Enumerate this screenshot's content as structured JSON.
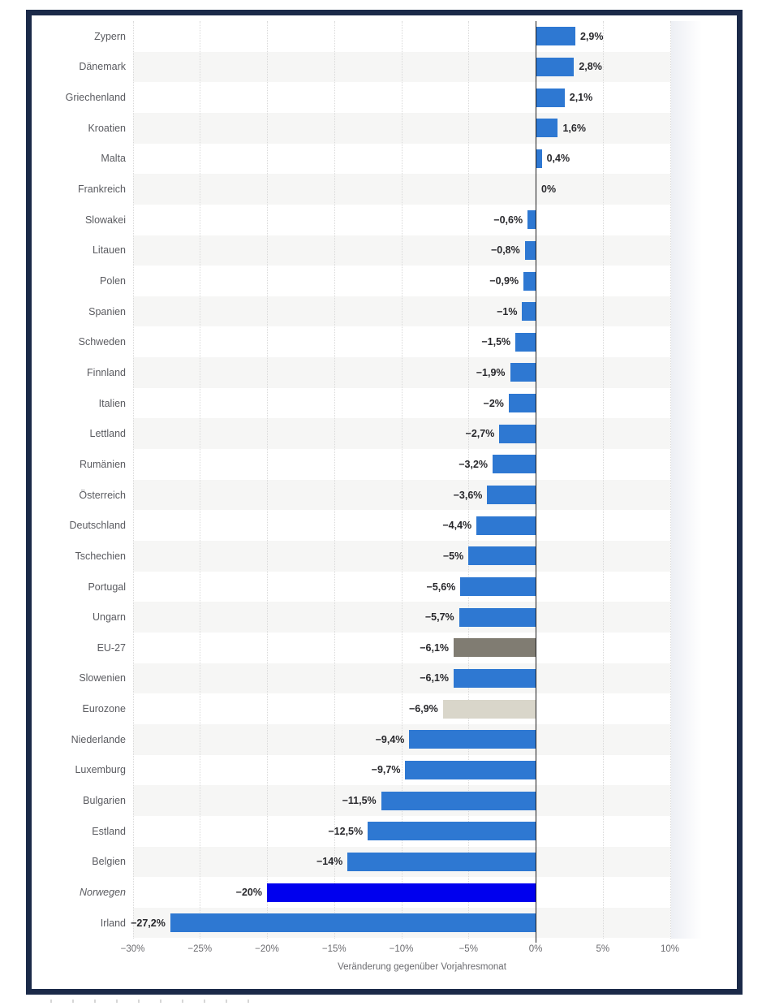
{
  "chart_data": {
    "type": "bar",
    "orientation": "horizontal",
    "title": "",
    "xlabel": "Veränderung gegenüber Vorjahresmonat",
    "xlim": [
      -30,
      10
    ],
    "grid": "dotted-vertical",
    "legend": "none",
    "x_ticks": [
      {
        "value": -30,
        "label": "−30%"
      },
      {
        "value": -25,
        "label": "−25%"
      },
      {
        "value": -20,
        "label": "−20%"
      },
      {
        "value": -15,
        "label": "−15%"
      },
      {
        "value": -10,
        "label": "−10%"
      },
      {
        "value": -5,
        "label": "−5%"
      },
      {
        "value": 0,
        "label": "0%"
      },
      {
        "value": 5,
        "label": "5%"
      },
      {
        "value": 10,
        "label": "10%"
      }
    ],
    "colors": {
      "default": "#2e78d2",
      "eu27": "#807c72",
      "eurozone": "#d9d6ca",
      "norway": "#0000ee",
      "frame": "#1b2a49"
    },
    "rows": [
      {
        "category": "Zypern",
        "value": 2.9,
        "label": "2,9%"
      },
      {
        "category": "Dänemark",
        "value": 2.8,
        "label": "2,8%"
      },
      {
        "category": "Griechenland",
        "value": 2.1,
        "label": "2,1%"
      },
      {
        "category": "Kroatien",
        "value": 1.6,
        "label": "1,6%"
      },
      {
        "category": "Malta",
        "value": 0.4,
        "label": "0,4%"
      },
      {
        "category": "Frankreich",
        "value": 0,
        "label": "0%"
      },
      {
        "category": "Slowakei",
        "value": -0.6,
        "label": "−0,6%"
      },
      {
        "category": "Litauen",
        "value": -0.8,
        "label": "−0,8%"
      },
      {
        "category": "Polen",
        "value": -0.9,
        "label": "−0,9%"
      },
      {
        "category": "Spanien",
        "value": -1,
        "label": "−1%"
      },
      {
        "category": "Schweden",
        "value": -1.5,
        "label": "−1,5%"
      },
      {
        "category": "Finnland",
        "value": -1.9,
        "label": "−1,9%"
      },
      {
        "category": "Italien",
        "value": -2,
        "label": "−2%"
      },
      {
        "category": "Lettland",
        "value": -2.7,
        "label": "−2,7%"
      },
      {
        "category": "Rumänien",
        "value": -3.2,
        "label": "−3,2%"
      },
      {
        "category": "Österreich",
        "value": -3.6,
        "label": "−3,6%"
      },
      {
        "category": "Deutschland",
        "value": -4.4,
        "label": "−4,4%"
      },
      {
        "category": "Tschechien",
        "value": -5,
        "label": "−5%"
      },
      {
        "category": "Portugal",
        "value": -5.6,
        "label": "−5,6%"
      },
      {
        "category": "Ungarn",
        "value": -5.7,
        "label": "−5,7%"
      },
      {
        "category": "EU-27",
        "value": -6.1,
        "label": "−6,1%",
        "color_key": "eu27"
      },
      {
        "category": "Slowenien",
        "value": -6.1,
        "label": "−6,1%"
      },
      {
        "category": "Eurozone",
        "value": -6.9,
        "label": "−6,9%",
        "color_key": "eurozone"
      },
      {
        "category": "Niederlande",
        "value": -9.4,
        "label": "−9,4%"
      },
      {
        "category": "Luxemburg",
        "value": -9.7,
        "label": "−9,7%"
      },
      {
        "category": "Bulgarien",
        "value": -11.5,
        "label": "−11,5%"
      },
      {
        "category": "Estland",
        "value": -12.5,
        "label": "−12,5%"
      },
      {
        "category": "Belgien",
        "value": -14,
        "label": "−14%"
      },
      {
        "category": "Norwegen",
        "value": -20,
        "label": "−20%",
        "color_key": "norway",
        "italic": true
      },
      {
        "category": "Irland",
        "value": -27.2,
        "label": "−27,2%"
      }
    ]
  }
}
